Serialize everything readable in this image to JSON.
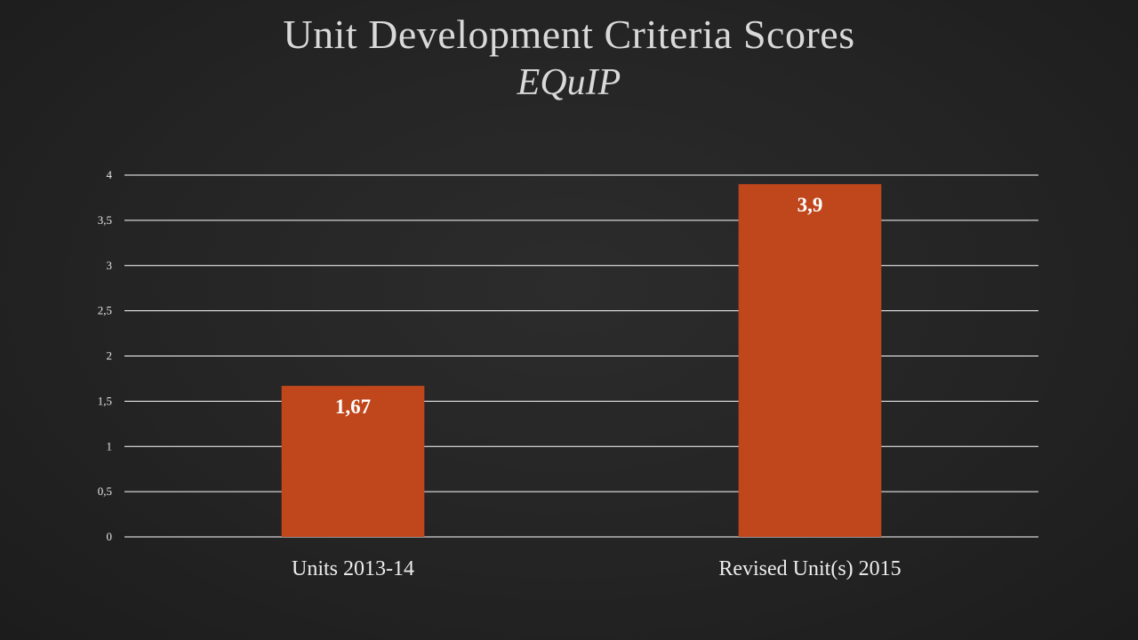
{
  "slide": {
    "title": "Unit Development Criteria Scores",
    "subtitle": "EQuIP",
    "background_color": "#262626",
    "text_color": "#d9d9d9"
  },
  "chart_data": {
    "type": "bar",
    "title": "",
    "xlabel": "",
    "ylabel": "",
    "categories": [
      "Units 2013-14",
      "Revised Unit(s) 2015"
    ],
    "series": [
      {
        "values": [
          1.67,
          3.9
        ],
        "data_labels": [
          "1,67",
          "3,9"
        ],
        "color": "#c0471c"
      }
    ],
    "ylim": [
      0,
      4
    ],
    "y_ticks": [
      0,
      0.5,
      1,
      1.5,
      2,
      2.5,
      3,
      3.5,
      4
    ],
    "y_tick_labels": [
      "0",
      "0,5",
      "1",
      "1,5",
      "2",
      "2,5",
      "3",
      "3,5",
      "4"
    ],
    "grid": true,
    "legend": "none",
    "gridline_color": "#ffffff"
  }
}
